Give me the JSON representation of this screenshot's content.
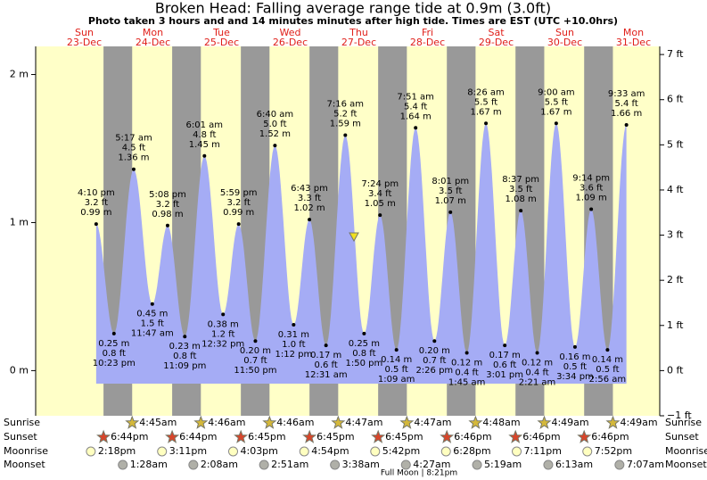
{
  "header": {
    "title": "Broken Head: Falling average range tide at 0.9m (3.0ft)",
    "subtitle": "Photo taken 3 hours and and 14 minutes minutes after high tide. Times are EST (UTC +10.0hrs)"
  },
  "chart_data": {
    "type": "tide",
    "ylim": [
      -0.305,
      2.19
    ],
    "yticks": [
      {
        "value": 0,
        "label": "0 m"
      },
      {
        "value": 1,
        "label": "1 m"
      },
      {
        "value": 2,
        "label": "2 m"
      }
    ],
    "y2lim": [
      -1,
      7.18
    ],
    "y2ticks": [
      {
        "value": -1,
        "label": "−1 ft"
      },
      {
        "value": 0,
        "label": "0 ft"
      },
      {
        "value": 1,
        "label": "1 ft"
      },
      {
        "value": 2,
        "label": "2 ft"
      },
      {
        "value": 3,
        "label": "3 ft"
      },
      {
        "value": 4,
        "label": "4 ft"
      },
      {
        "value": 5,
        "label": "5 ft"
      },
      {
        "value": 6,
        "label": "6 ft"
      },
      {
        "value": 7,
        "label": "7 ft"
      }
    ],
    "current_level": 0.9,
    "row_labels": [
      "Sunrise",
      "Sunset",
      "Moonrise",
      "Moonset"
    ],
    "full_moon": "Full Moon | 8:21pm",
    "days": [
      {
        "name": "Sun",
        "date": "23-Dec",
        "sunset": "6:44pm",
        "moonrise": "2:18pm",
        "tides": [
          {
            "time": "4:10 pm",
            "ft": 3.2,
            "ft_label": "3.2 ft",
            "m": 0.99,
            "m_label": "0.99 m"
          },
          {
            "time": "10:23 pm",
            "ft": 0.8,
            "ft_label": "0.8 ft",
            "m": 0.25,
            "m_label": "0.25 m"
          }
        ]
      },
      {
        "name": "Mon",
        "date": "24-Dec",
        "sunrise": "4:45am",
        "sunset": "6:44pm",
        "moonrise": "3:11pm",
        "moonset": "1:28am",
        "tides": [
          {
            "time": "5:17 am",
            "ft": 4.5,
            "ft_label": "4.5 ft",
            "m": 1.36,
            "m_label": "1.36 m"
          },
          {
            "time": "11:47 am",
            "ft": 1.5,
            "ft_label": "1.5 ft",
            "m": 0.45,
            "m_label": "0.45 m"
          },
          {
            "time": "5:08 pm",
            "ft": 3.2,
            "ft_label": "3.2 ft",
            "m": 0.98,
            "m_label": "0.98 m"
          },
          {
            "time": "11:09 pm",
            "ft": 0.8,
            "ft_label": "0.8 ft",
            "m": 0.23,
            "m_label": "0.23 m"
          }
        ]
      },
      {
        "name": "Tue",
        "date": "25-Dec",
        "sunrise": "4:46am",
        "sunset": "6:45pm",
        "moonrise": "4:03pm",
        "moonset": "2:08am",
        "tides": [
          {
            "time": "6:01 am",
            "ft": 4.8,
            "ft_label": "4.8 ft",
            "m": 1.45,
            "m_label": "1.45 m"
          },
          {
            "time": "12:32 pm",
            "ft": 1.2,
            "ft_label": "1.2 ft",
            "m": 0.38,
            "m_label": "0.38 m"
          },
          {
            "time": "5:59 pm",
            "ft": 3.2,
            "ft_label": "3.2 ft",
            "m": 0.99,
            "m_label": "0.99 m"
          },
          {
            "time": "11:50 pm",
            "ft": 0.7,
            "ft_label": "0.7 ft",
            "m": 0.2,
            "m_label": "0.20 m"
          }
        ]
      },
      {
        "name": "Wed",
        "date": "26-Dec",
        "sunrise": "4:46am",
        "sunset": "6:45pm",
        "moonrise": "4:54pm",
        "moonset": "2:51am",
        "tides": [
          {
            "time": "6:40 am",
            "ft": 5.0,
            "ft_label": "5.0 ft",
            "m": 1.52,
            "m_label": "1.52 m"
          },
          {
            "time": "1:12 pm",
            "ft": 1.0,
            "ft_label": "1.0 ft",
            "m": 0.31,
            "m_label": "0.31 m"
          },
          {
            "time": "6:43 pm",
            "ft": 3.3,
            "ft_label": "3.3 ft",
            "m": 1.02,
            "m_label": "1.02 m"
          }
        ]
      },
      {
        "name": "Thu",
        "date": "27-Dec",
        "sunrise": "4:47am",
        "sunset": "6:45pm",
        "moonrise": "5:42pm",
        "moonset": "3:38am",
        "tides": [
          {
            "time": "12:31 am",
            "ft": 0.6,
            "ft_label": "0.6 ft",
            "m": 0.17,
            "m_label": "0.17 m"
          },
          {
            "time": "7:16 am",
            "ft": 5.2,
            "ft_label": "5.2 ft",
            "m": 1.59,
            "m_label": "1.59 m"
          },
          {
            "time": "1:50 pm",
            "ft": 0.8,
            "ft_label": "0.8 ft",
            "m": 0.25,
            "m_label": "0.25 m"
          },
          {
            "time": "7:24 pm",
            "ft": 3.4,
            "ft_label": "3.4 ft",
            "m": 1.05,
            "m_label": "1.05 m"
          }
        ]
      },
      {
        "name": "Fri",
        "date": "28-Dec",
        "sunrise": "4:47am",
        "sunset": "6:46pm",
        "moonrise": "6:28pm",
        "moonset": "4:27am",
        "tides": [
          {
            "time": "1:09 am",
            "ft": 0.5,
            "ft_label": "0.5 ft",
            "m": 0.14,
            "m_label": "0.14 m"
          },
          {
            "time": "7:51 am",
            "ft": 5.4,
            "ft_label": "5.4 ft",
            "m": 1.64,
            "m_label": "1.64 m"
          },
          {
            "time": "2:26 pm",
            "ft": 0.7,
            "ft_label": "0.7 ft",
            "m": 0.2,
            "m_label": "0.20 m"
          },
          {
            "time": "8:01 pm",
            "ft": 3.5,
            "ft_label": "3.5 ft",
            "m": 1.07,
            "m_label": "1.07 m"
          }
        ]
      },
      {
        "name": "Sat",
        "date": "29-Dec",
        "sunrise": "4:48am",
        "sunset": "6:46pm",
        "moonrise": "7:11pm",
        "moonset": "5:19am",
        "tides": [
          {
            "time": "1:45 am",
            "ft": 0.4,
            "ft_label": "0.4 ft",
            "m": 0.12,
            "m_label": "0.12 m"
          },
          {
            "time": "8:26 am",
            "ft": 5.5,
            "ft_label": "5.5 ft",
            "m": 1.67,
            "m_label": "1.67 m"
          },
          {
            "time": "3:01 pm",
            "ft": 0.6,
            "ft_label": "0.6 ft",
            "m": 0.17,
            "m_label": "0.17 m"
          },
          {
            "time": "8:37 pm",
            "ft": 3.5,
            "ft_label": "3.5 ft",
            "m": 1.08,
            "m_label": "1.08 m"
          }
        ]
      },
      {
        "name": "Sun",
        "date": "30-Dec",
        "sunrise": "4:49am",
        "sunset": "6:46pm",
        "moonrise": "7:52pm",
        "moonset": "6:13am",
        "tides": [
          {
            "time": "2:21 am",
            "ft": 0.4,
            "ft_label": "0.4 ft",
            "m": 0.12,
            "m_label": "0.12 m"
          },
          {
            "time": "9:00 am",
            "ft": 5.5,
            "ft_label": "5.5 ft",
            "m": 1.67,
            "m_label": "1.67 m"
          },
          {
            "time": "3:34 pm",
            "ft": 0.5,
            "ft_label": "0.5 ft",
            "m": 0.16,
            "m_label": "0.16 m"
          },
          {
            "time": "9:14 pm",
            "ft": 3.6,
            "ft_label": "3.6 ft",
            "m": 1.09,
            "m_label": "1.09 m"
          }
        ]
      },
      {
        "name": "Mon",
        "date": "31-Dec",
        "sunrise": "4:49am",
        "moonset": "7:07am",
        "tides": [
          {
            "time": "2:56 am",
            "ft": 0.5,
            "ft_label": "0.5 ft",
            "m": 0.14,
            "m_label": "0.14 m"
          },
          {
            "time": "9:33 am",
            "ft": 5.4,
            "ft_label": "5.4 ft",
            "m": 1.66,
            "m_label": "1.66 m"
          }
        ]
      }
    ]
  }
}
